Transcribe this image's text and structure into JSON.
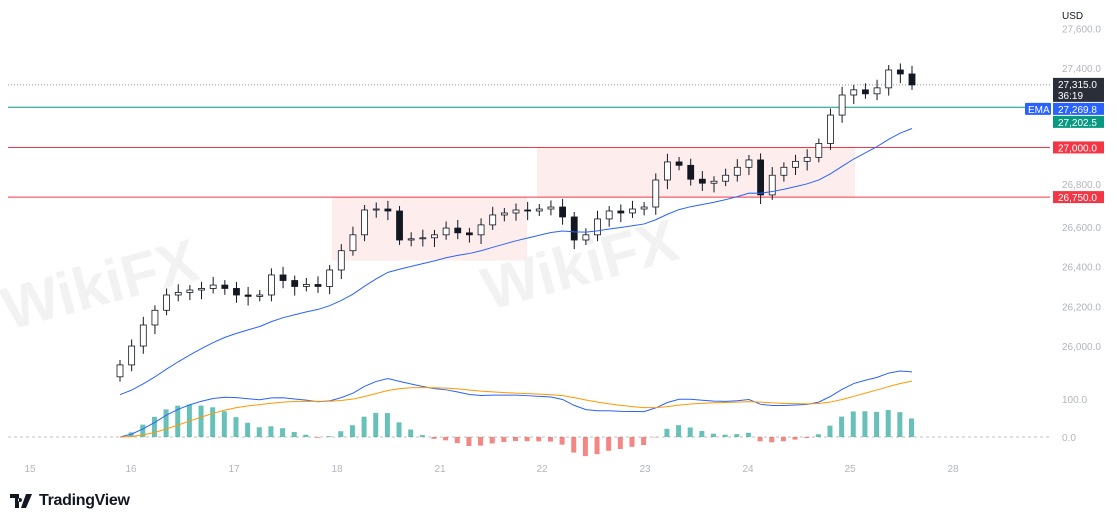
{
  "currency": "USD",
  "brand": "TradingView",
  "watermark": "WikiFX",
  "colors": {
    "up": "#26a69a",
    "down": "#131722",
    "candle_up_fill": "#ffffff",
    "ema": "#2962ff",
    "macd": "#2962ff",
    "signal": "#ff9800",
    "hist_up": "#26a69a",
    "hist_down": "#ef5350",
    "resistance": "#f23645",
    "support_line": "#089981",
    "zone": "#fde8e8"
  },
  "chart_data": {
    "type": "candlestick",
    "y_ticks": [
      "27,600.0",
      "27,400.0",
      "26,800.0",
      "26,600.0",
      "26,400.0",
      "26,200.0",
      "26,000.0"
    ],
    "y_tick_values": [
      27600,
      27400,
      26800,
      26600,
      26400,
      26200,
      26000
    ],
    "ylim": [
      25880,
      27560
    ],
    "x_ticks": [
      "15",
      "16",
      "17",
      "18",
      "21",
      "22",
      "23",
      "24",
      "25",
      "28"
    ],
    "closes": [
      25905,
      26000,
      26106,
      26180,
      26257,
      26270,
      26282,
      26290,
      26307,
      26290,
      26257,
      26250,
      26257,
      26358,
      26330,
      26300,
      26310,
      26300,
      26383,
      26480,
      26560,
      26685,
      26690,
      26680,
      26534,
      26540,
      26545,
      26560,
      26594,
      26570,
      26560,
      26610,
      26660,
      26670,
      26685,
      26680,
      26690,
      26700,
      26650,
      26534,
      26560,
      26640,
      26680,
      26670,
      26690,
      26700,
      26836,
      26927,
      26910,
      26840,
      26820,
      26830,
      26860,
      26900,
      26937,
      26761,
      26860,
      26900,
      26930,
      26950,
      27020,
      27163,
      27264,
      27290,
      27270,
      27300,
      27390,
      27370,
      27315
    ],
    "price_tags": [
      {
        "label": "27,315.0",
        "sub": "36:19",
        "value": 27315,
        "color": "#2a2e39"
      },
      {
        "label": "27,269.8",
        "value": 27269.8,
        "color": "#2962ff",
        "name": "EMA"
      },
      {
        "label": "27,202.5",
        "value": 27202.5,
        "color": "#089981"
      },
      {
        "label": "27,000.0",
        "value": 27000,
        "color": "#f23645"
      },
      {
        "label": "26,750.0",
        "value": 26750,
        "color": "#f23645"
      }
    ],
    "horizontal_lines": [
      27315,
      27202.5,
      27000,
      26750
    ],
    "zones": [
      {
        "from_day": "18",
        "to_day": "22",
        "top": 26750,
        "bottom": 26430
      },
      {
        "from_day": "22",
        "to_day": "25",
        "top": 27000,
        "bottom": 26750
      }
    ],
    "indicators": {
      "ema_label": "EMA",
      "macd_ticks": [
        "100.0",
        "0.0"
      ]
    }
  }
}
